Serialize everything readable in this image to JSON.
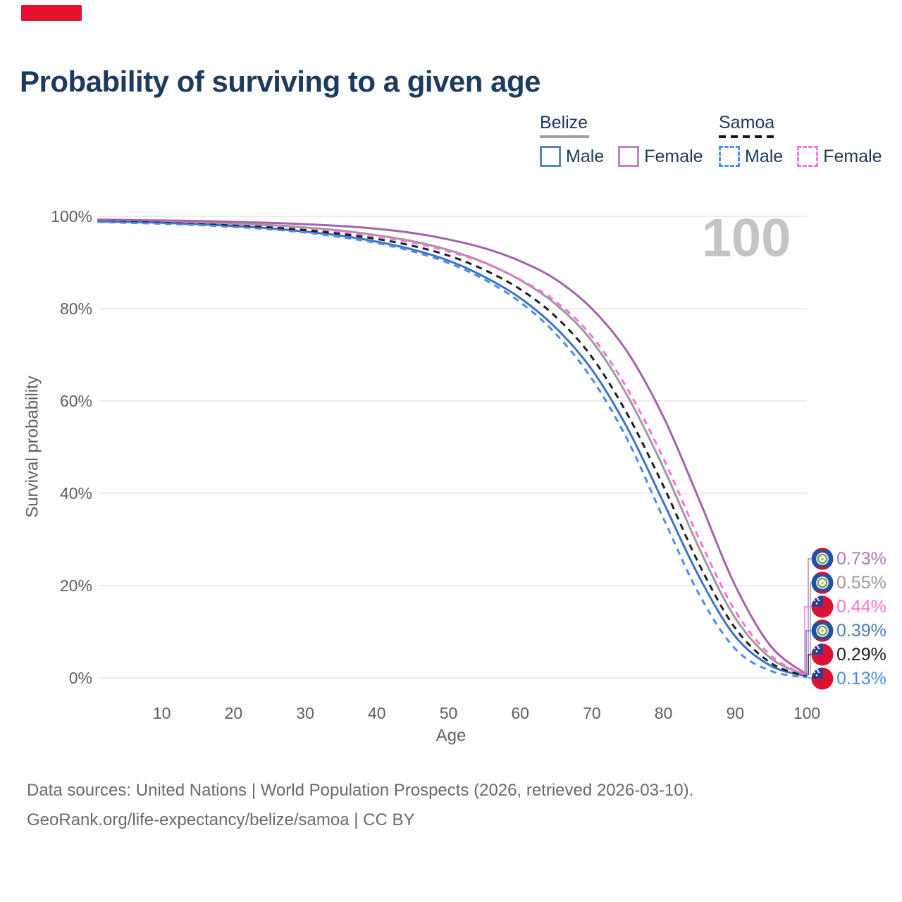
{
  "page": {
    "title": "Probability of surviving to a given age"
  },
  "decorations": {
    "top_badge_color": "#e8112d",
    "watermark_color": "#c4c4c4"
  },
  "legend": {
    "groups": [
      {
        "label": "Belize",
        "line_style": "solid",
        "underline_color": "#9e9e9e",
        "items": [
          {
            "label": "Male",
            "color": "#5b86bb",
            "dashed": false
          },
          {
            "label": "Female",
            "color": "#bd85c4",
            "dashed": false
          }
        ]
      },
      {
        "label": "Samoa",
        "line_style": "dashed",
        "underline_color": "#141414",
        "items": [
          {
            "label": "Male",
            "color": "#4a90f4",
            "dashed": true
          },
          {
            "label": "Female",
            "color": "#ff77e1",
            "dashed": true
          }
        ]
      }
    ]
  },
  "chart_data": {
    "type": "line",
    "title": "Probability of surviving to a given age",
    "xlabel": "Age",
    "ylabel": "Survival probability",
    "xlim": [
      1,
      100
    ],
    "ylim": [
      0,
      100
    ],
    "grid": true,
    "legend_position": "top-right",
    "watermark": "100",
    "x": [
      1,
      5,
      10,
      15,
      20,
      25,
      30,
      35,
      40,
      45,
      50,
      55,
      60,
      65,
      70,
      75,
      80,
      85,
      90,
      95,
      100
    ],
    "xticks": [
      10,
      20,
      30,
      40,
      50,
      60,
      70,
      80,
      90,
      100
    ],
    "yticks": [
      {
        "v": 0,
        "label": "0%"
      },
      {
        "v": 20,
        "label": "20%"
      },
      {
        "v": 40,
        "label": "40%"
      },
      {
        "v": 60,
        "label": "60%"
      },
      {
        "v": 80,
        "label": "80%"
      },
      {
        "v": 100,
        "label": "100%"
      }
    ],
    "series": [
      {
        "name": "Belize Both sexes",
        "country": "Belize",
        "sex": "both",
        "color": "#9b9b9b",
        "dashed": false,
        "values": [
          99.1,
          99.0,
          98.9,
          98.7,
          98.4,
          98.1,
          97.6,
          96.9,
          95.9,
          94.6,
          92.7,
          90.0,
          86.2,
          80.9,
          73.0,
          61.0,
          45.5,
          28.0,
          13.0,
          4.2,
          0.55
        ]
      },
      {
        "name": "Belize Male",
        "country": "Belize",
        "sex": "male",
        "color": "#3e74c4",
        "dashed": false,
        "values": [
          98.9,
          98.8,
          98.6,
          98.3,
          97.9,
          97.4,
          96.7,
          95.8,
          94.5,
          92.8,
          90.4,
          86.9,
          82.3,
          75.8,
          66.8,
          54.0,
          38.0,
          21.8,
          9.0,
          2.6,
          0.39
        ]
      },
      {
        "name": "Belize Female",
        "country": "Belize",
        "sex": "female",
        "color": "#a661ad",
        "dashed": false,
        "values": [
          99.3,
          99.2,
          99.1,
          99.0,
          98.8,
          98.6,
          98.3,
          97.9,
          97.3,
          96.4,
          95.0,
          93.1,
          90.3,
          86.3,
          80.0,
          70.5,
          56.5,
          38.5,
          20.0,
          6.8,
          0.73
        ]
      },
      {
        "name": "Samoa Female",
        "country": "Samoa",
        "sex": "female",
        "color": "#ff70e0",
        "dashed": true,
        "values": [
          99.0,
          98.9,
          98.7,
          98.5,
          98.2,
          97.8,
          97.3,
          96.6,
          95.6,
          94.3,
          92.4,
          89.9,
          86.3,
          81.5,
          74.0,
          62.5,
          47.5,
          30.0,
          14.5,
          4.8,
          0.44
        ]
      },
      {
        "name": "Samoa Both sexes",
        "country": "Samoa",
        "sex": "both",
        "color": "#202020",
        "dashed": true,
        "values": [
          98.9,
          98.8,
          98.6,
          98.3,
          98.0,
          97.6,
          97.0,
          96.2,
          95.1,
          93.6,
          91.5,
          88.4,
          84.2,
          78.2,
          69.5,
          57.0,
          41.5,
          24.5,
          10.8,
          3.2,
          0.29
        ]
      },
      {
        "name": "Samoa Male",
        "country": "Samoa",
        "sex": "male",
        "color": "#4a8ef2",
        "dashed": true,
        "values": [
          98.8,
          98.6,
          98.4,
          98.1,
          97.7,
          97.2,
          96.5,
          95.5,
          94.2,
          92.4,
          89.9,
          86.3,
          81.4,
          74.5,
          64.8,
          51.5,
          34.5,
          18.0,
          6.3,
          1.5,
          0.13
        ]
      }
    ],
    "end_labels": [
      {
        "series": "Belize Female",
        "text": "0.73%",
        "color": "#b277bd",
        "flag": "belize"
      },
      {
        "series": "Belize Both sexes",
        "text": "0.55%",
        "color": "#9b9b9b",
        "flag": "belize"
      },
      {
        "series": "Samoa Female",
        "text": "0.44%",
        "color": "#ff70e0",
        "flag": "samoa"
      },
      {
        "series": "Belize Male",
        "text": "0.39%",
        "color": "#4e7ec0",
        "flag": "belize"
      },
      {
        "series": "Samoa Both sexes",
        "text": "0.29%",
        "color": "#202020",
        "flag": "samoa"
      },
      {
        "series": "Samoa Male",
        "text": "0.13%",
        "color": "#4a8ef2",
        "flag": "samoa"
      }
    ]
  },
  "footer": {
    "line1": "Data sources: United Nations | World Population Prospects (2026, retrieved 2026-03-10).",
    "line2": "GeoRank.org/life-expectancy/belize/samoa | CC BY"
  }
}
